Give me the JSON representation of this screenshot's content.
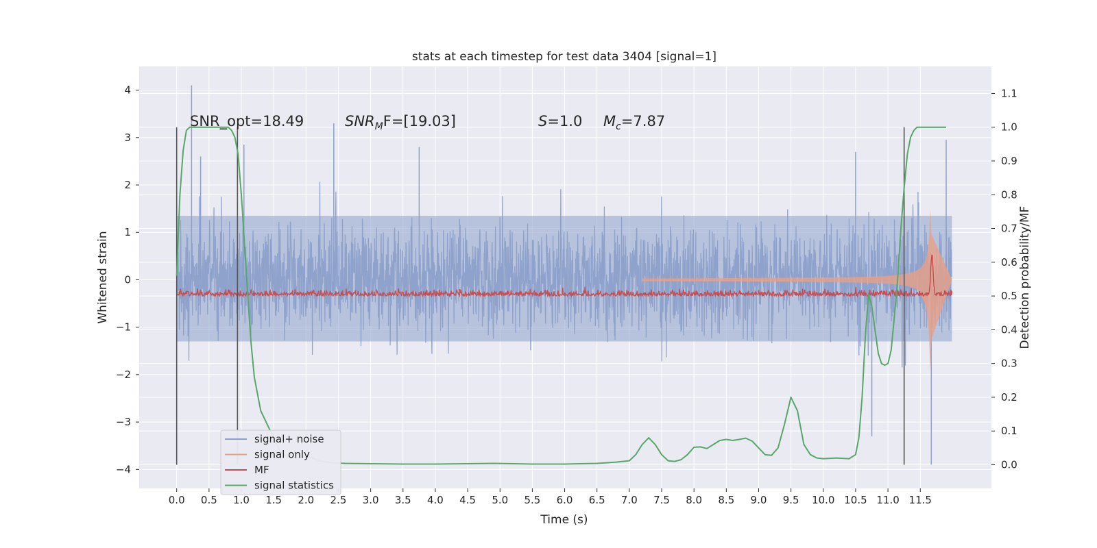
{
  "chart_data": {
    "type": "line",
    "title": "stats at each timestep for test data 3404 [signal=1]",
    "xlabel": "Time (s)",
    "ylabel": "Whitened strain",
    "y2label": "Detection probability/MF",
    "xlim": [
      -0.58,
      12.6
    ],
    "ylim": [
      -4.4,
      4.5
    ],
    "y2lim": [
      -0.07,
      1.18
    ],
    "x_ticks": [
      "0.0",
      "0.5",
      "1.0",
      "1.5",
      "2.0",
      "2.5",
      "3.0",
      "3.5",
      "4.0",
      "4.5",
      "5.0",
      "5.5",
      "6.0",
      "6.5",
      "7.0",
      "7.5",
      "8.0",
      "8.5",
      "9.0",
      "9.5",
      "10.0",
      "10.5",
      "11.0",
      "11.5"
    ],
    "x_tick_values": [
      0,
      0.5,
      1,
      1.5,
      2,
      2.5,
      3,
      3.5,
      4,
      4.5,
      5,
      5.5,
      6,
      6.5,
      7,
      7.5,
      8,
      8.5,
      9,
      9.5,
      10,
      10.5,
      11,
      11.5
    ],
    "y_ticks": [
      "4",
      "3",
      "2",
      "1",
      "0",
      "−1",
      "−2",
      "−3",
      "−4"
    ],
    "y_tick_values": [
      4,
      3,
      2,
      1,
      0,
      -1,
      -2,
      -3,
      -4
    ],
    "y2_ticks": [
      "1.1",
      "1.0",
      "0.9",
      "0.8",
      "0.7",
      "0.6",
      "0.5",
      "0.4",
      "0.3",
      "0.2",
      "0.1",
      "0.0"
    ],
    "y2_tick_values": [
      1.1,
      1.0,
      0.9,
      0.8,
      0.7,
      0.6,
      0.5,
      0.4,
      0.3,
      0.2,
      0.1,
      0.0
    ],
    "grid": true,
    "legend_position": "bottom-left",
    "annotations": {
      "snr_opt": "SNR_opt=18.49",
      "snr_mf_label": "SNR",
      "snr_mf_sub": "M",
      "snr_mf_rest": "F=[19.03]",
      "s_label": "S",
      "s_rest": "=1.0",
      "mc_label": "M",
      "mc_sub": "c",
      "mc_rest": "=7.87"
    },
    "vertical_lines_x": [
      0.0,
      0.94,
      11.25
    ],
    "series": [
      {
        "name": "signal+ noise",
        "axis": "left",
        "color": "#8da0cb",
        "kind": "noise",
        "x_range": [
          0.0,
          11.99
        ],
        "typical_band": [
          -1.3,
          1.35
        ],
        "extremes": [
          {
            "x": 0.23,
            "y": 4.1
          },
          {
            "x": 2.43,
            "y": 3.3
          },
          {
            "x": 11.67,
            "y": -3.9
          },
          {
            "x": 10.75,
            "y": -3.3
          },
          {
            "x": 0.37,
            "y": 2.6
          },
          {
            "x": 1.04,
            "y": 2.85
          },
          {
            "x": 11.9,
            "y": 2.95
          },
          {
            "x": 3.75,
            "y": 2.8
          },
          {
            "x": 10.5,
            "y": 2.7
          }
        ]
      },
      {
        "name": "signal only",
        "axis": "left",
        "color": "#e8a087",
        "kind": "chirp",
        "x_range": [
          7.2,
          11.99
        ],
        "peak": {
          "x": 11.66,
          "y": 1.6,
          "y_min": -2.1
        }
      },
      {
        "name": "MF",
        "axis": "right",
        "color": "#c44e52",
        "kind": "mf",
        "baseline": 0.5,
        "peak": {
          "x": 11.68,
          "y": 0.62
        }
      },
      {
        "name": "signal statistics",
        "axis": "right",
        "color": "#55a868",
        "kind": "line",
        "x": [
          0.0,
          0.05,
          0.1,
          0.15,
          0.2,
          0.3,
          0.5,
          0.7,
          0.8,
          0.85,
          0.9,
          0.95,
          1.0,
          1.05,
          1.1,
          1.15,
          1.2,
          1.3,
          1.4,
          1.5,
          1.6,
          1.7,
          1.8,
          1.9,
          2.0,
          2.1,
          2.2,
          2.4,
          2.6,
          3.0,
          3.5,
          4.0,
          4.5,
          4.9,
          5.2,
          5.5,
          6.0,
          6.5,
          6.8,
          7.0,
          7.1,
          7.2,
          7.3,
          7.4,
          7.5,
          7.6,
          7.7,
          7.8,
          7.9,
          8.0,
          8.1,
          8.2,
          8.3,
          8.4,
          8.5,
          8.6,
          8.7,
          8.8,
          8.9,
          9.0,
          9.1,
          9.2,
          9.3,
          9.4,
          9.5,
          9.6,
          9.7,
          9.8,
          9.9,
          10.0,
          10.2,
          10.4,
          10.5,
          10.55,
          10.6,
          10.65,
          10.7,
          10.75,
          10.8,
          10.85,
          10.9,
          10.95,
          11.0,
          11.05,
          11.1,
          11.15,
          11.2,
          11.25,
          11.3,
          11.35,
          11.4,
          11.45,
          11.5,
          11.6,
          11.7,
          11.8,
          11.9
        ],
        "y": [
          0.56,
          0.8,
          0.93,
          0.99,
          1.0,
          1.0,
          1.0,
          1.0,
          1.0,
          0.99,
          0.97,
          0.92,
          0.8,
          0.65,
          0.5,
          0.36,
          0.26,
          0.16,
          0.12,
          0.08,
          0.04,
          0.025,
          0.02,
          0.022,
          0.025,
          0.02,
          0.012,
          0.006,
          0.004,
          0.003,
          0.002,
          0.002,
          0.003,
          0.004,
          0.003,
          0.002,
          0.002,
          0.004,
          0.008,
          0.012,
          0.03,
          0.06,
          0.08,
          0.06,
          0.03,
          0.012,
          0.01,
          0.015,
          0.03,
          0.052,
          0.053,
          0.048,
          0.06,
          0.072,
          0.075,
          0.072,
          0.075,
          0.079,
          0.07,
          0.05,
          0.03,
          0.028,
          0.05,
          0.12,
          0.2,
          0.16,
          0.06,
          0.03,
          0.02,
          0.018,
          0.02,
          0.018,
          0.03,
          0.08,
          0.2,
          0.38,
          0.505,
          0.47,
          0.4,
          0.33,
          0.3,
          0.295,
          0.3,
          0.34,
          0.44,
          0.55,
          0.7,
          0.82,
          0.92,
          0.97,
          0.99,
          1.0,
          1.0,
          1.0,
          1.0,
          1.0,
          1.0
        ]
      }
    ]
  }
}
